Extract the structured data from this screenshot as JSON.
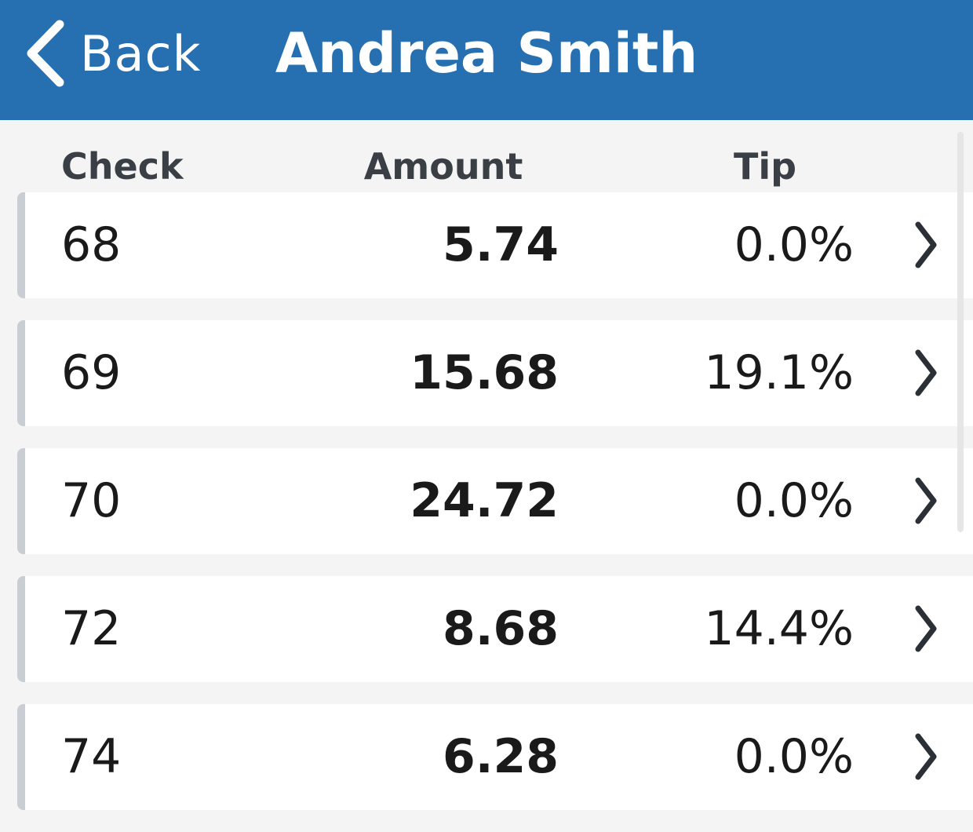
{
  "header": {
    "back_label": "Back",
    "title": "Andrea Smith",
    "background_color": "#2670b2"
  },
  "columns": {
    "check": "Check",
    "amount": "Amount",
    "tip": "Tip"
  },
  "rows": [
    {
      "check": "68",
      "amount": "5.74",
      "tip": "0.0%"
    },
    {
      "check": "69",
      "amount": "15.68",
      "tip": "19.1%"
    },
    {
      "check": "70",
      "amount": "24.72",
      "tip": "0.0%"
    },
    {
      "check": "72",
      "amount": "8.68",
      "tip": "14.4%"
    },
    {
      "check": "74",
      "amount": "6.28",
      "tip": "0.0%"
    }
  ],
  "icons": {
    "back": "chevron-left-icon",
    "row": "chevron-right-icon"
  }
}
